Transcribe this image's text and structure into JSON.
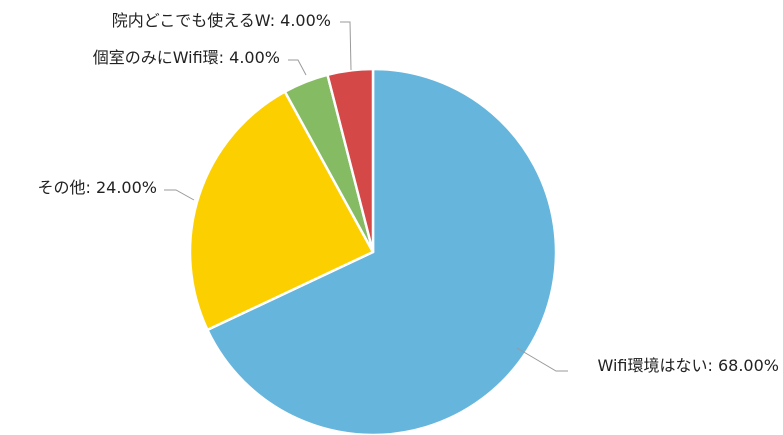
{
  "chart_data": {
    "type": "pie",
    "slices": [
      {
        "label": "Wifi環境はない",
        "value": 68.0,
        "display": "Wifi環境はない: 68.00%",
        "color": "#66b5dc"
      },
      {
        "label": "その他",
        "value": 24.0,
        "display": "その他: 24.00%",
        "color": "#fcd000"
      },
      {
        "label": "個室のみにWifi環",
        "value": 4.0,
        "display": "個室のみにWifi環: 4.00%",
        "color": "#85bc63"
      },
      {
        "label": "院内どこでも使えるW",
        "value": 4.0,
        "display": "院内どこでも使えるW: 4.00%",
        "color": "#d44848"
      }
    ],
    "start_angle_deg": 0,
    "direction": "clockwise",
    "legend": "none"
  }
}
